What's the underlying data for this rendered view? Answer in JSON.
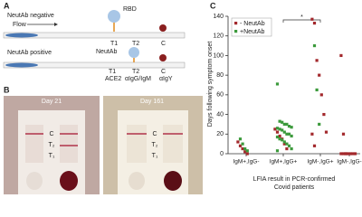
{
  "panel_a": {
    "label": "A",
    "negative": {
      "title": "NeutAb negative",
      "flow": "Flow",
      "rbd": "RBD",
      "t1": "T1",
      "t2": "T2",
      "c": "C"
    },
    "positive": {
      "title": "NeutAb positive",
      "neutab": "NeutAb",
      "t1": "T1",
      "t2": "T2",
      "c": "C",
      "ace2": "ACE2",
      "anti_igg_igm": "αIgG/IgM",
      "anti_igy": "αIgY"
    }
  },
  "panel_b": {
    "label": "B",
    "left": {
      "title": "Day 21",
      "c": "C",
      "t2": "T₂",
      "t1": "T₁"
    },
    "right": {
      "title": "Day 161",
      "c": "C",
      "t2": "T₂",
      "t1": "T₁"
    }
  },
  "chart_data": {
    "type": "strip",
    "title": "C",
    "y_label": "Days following symptom onset",
    "x_label": [
      "LFIA result in PCR-confirmed",
      "Covid patients"
    ],
    "categories": [
      "IgM+,IgG-",
      "IgM+,IgG+",
      "IgM-,IgG+",
      "IgM-,IgG-"
    ],
    "ylim": [
      0,
      140
    ],
    "yticks": [
      0,
      20,
      40,
      60,
      80,
      100,
      120,
      140
    ],
    "significance_label": "*",
    "legend": "upper left",
    "series": [
      {
        "name": "- NeutAb",
        "color": "#a3282c",
        "x": [
          "IgM+,IgG-",
          "IgM+,IgG-",
          "IgM+,IgG-",
          "IgM+,IgG-",
          "IgM+,IgG-",
          "IgM+,IgG+",
          "IgM+,IgG+",
          "IgM+,IgG+",
          "IgM+,IgG+",
          "IgM+,IgG+",
          "IgM+,IgG+",
          "IgM-,IgG+",
          "IgM-,IgG+",
          "IgM-,IgG+",
          "IgM-,IgG+",
          "IgM-,IgG+",
          "IgM-,IgG+",
          "IgM-,IgG+",
          "IgM-,IgG+",
          "IgM-,IgG+",
          "IgM-,IgG-",
          "IgM-,IgG-",
          "IgM-,IgG-",
          "IgM-,IgG-",
          "IgM-,IgG-",
          "IgM-,IgG-",
          "IgM-,IgG-",
          "IgM-,IgG-",
          "IgM-,IgG-",
          "IgM-,IgG-"
        ],
        "values": [
          12,
          8,
          5,
          2,
          0,
          25,
          22,
          18,
          15,
          10,
          5,
          137,
          133,
          95,
          80,
          60,
          40,
          22,
          20,
          8,
          100,
          20,
          0,
          0,
          0,
          0,
          0,
          0,
          0,
          0
        ]
      },
      {
        "name": "+NeutAb",
        "color": "#3c9a3c",
        "x": [
          "IgM+,IgG-",
          "IgM+,IgG-",
          "IgM+,IgG-",
          "IgM+,IgG-",
          "IgM+,IgG+",
          "IgM+,IgG+",
          "IgM+,IgG+",
          "IgM+,IgG+",
          "IgM+,IgG+",
          "IgM+,IgG+",
          "IgM+,IgG+",
          "IgM+,IgG+",
          "IgM+,IgG+",
          "IgM+,IgG+",
          "IgM+,IgG+",
          "IgM+,IgG+",
          "IgM+,IgG+",
          "IgM+,IgG+",
          "IgM+,IgG+",
          "IgM+,IgG+",
          "IgM+,IgG+",
          "IgM+,IgG+",
          "IgM+,IgG+",
          "IgM+,IgG+",
          "IgM+,IgG+",
          "IgM+,IgG+",
          "IgM-,IgG+",
          "IgM-,IgG+",
          "IgM-,IgG+"
        ],
        "values": [
          15,
          10,
          5,
          3,
          71,
          33,
          32,
          30,
          30,
          28,
          27,
          26,
          25,
          24,
          22,
          20,
          20,
          18,
          17,
          15,
          14,
          12,
          10,
          8,
          5,
          3,
          110,
          65,
          30
        ]
      }
    ]
  }
}
